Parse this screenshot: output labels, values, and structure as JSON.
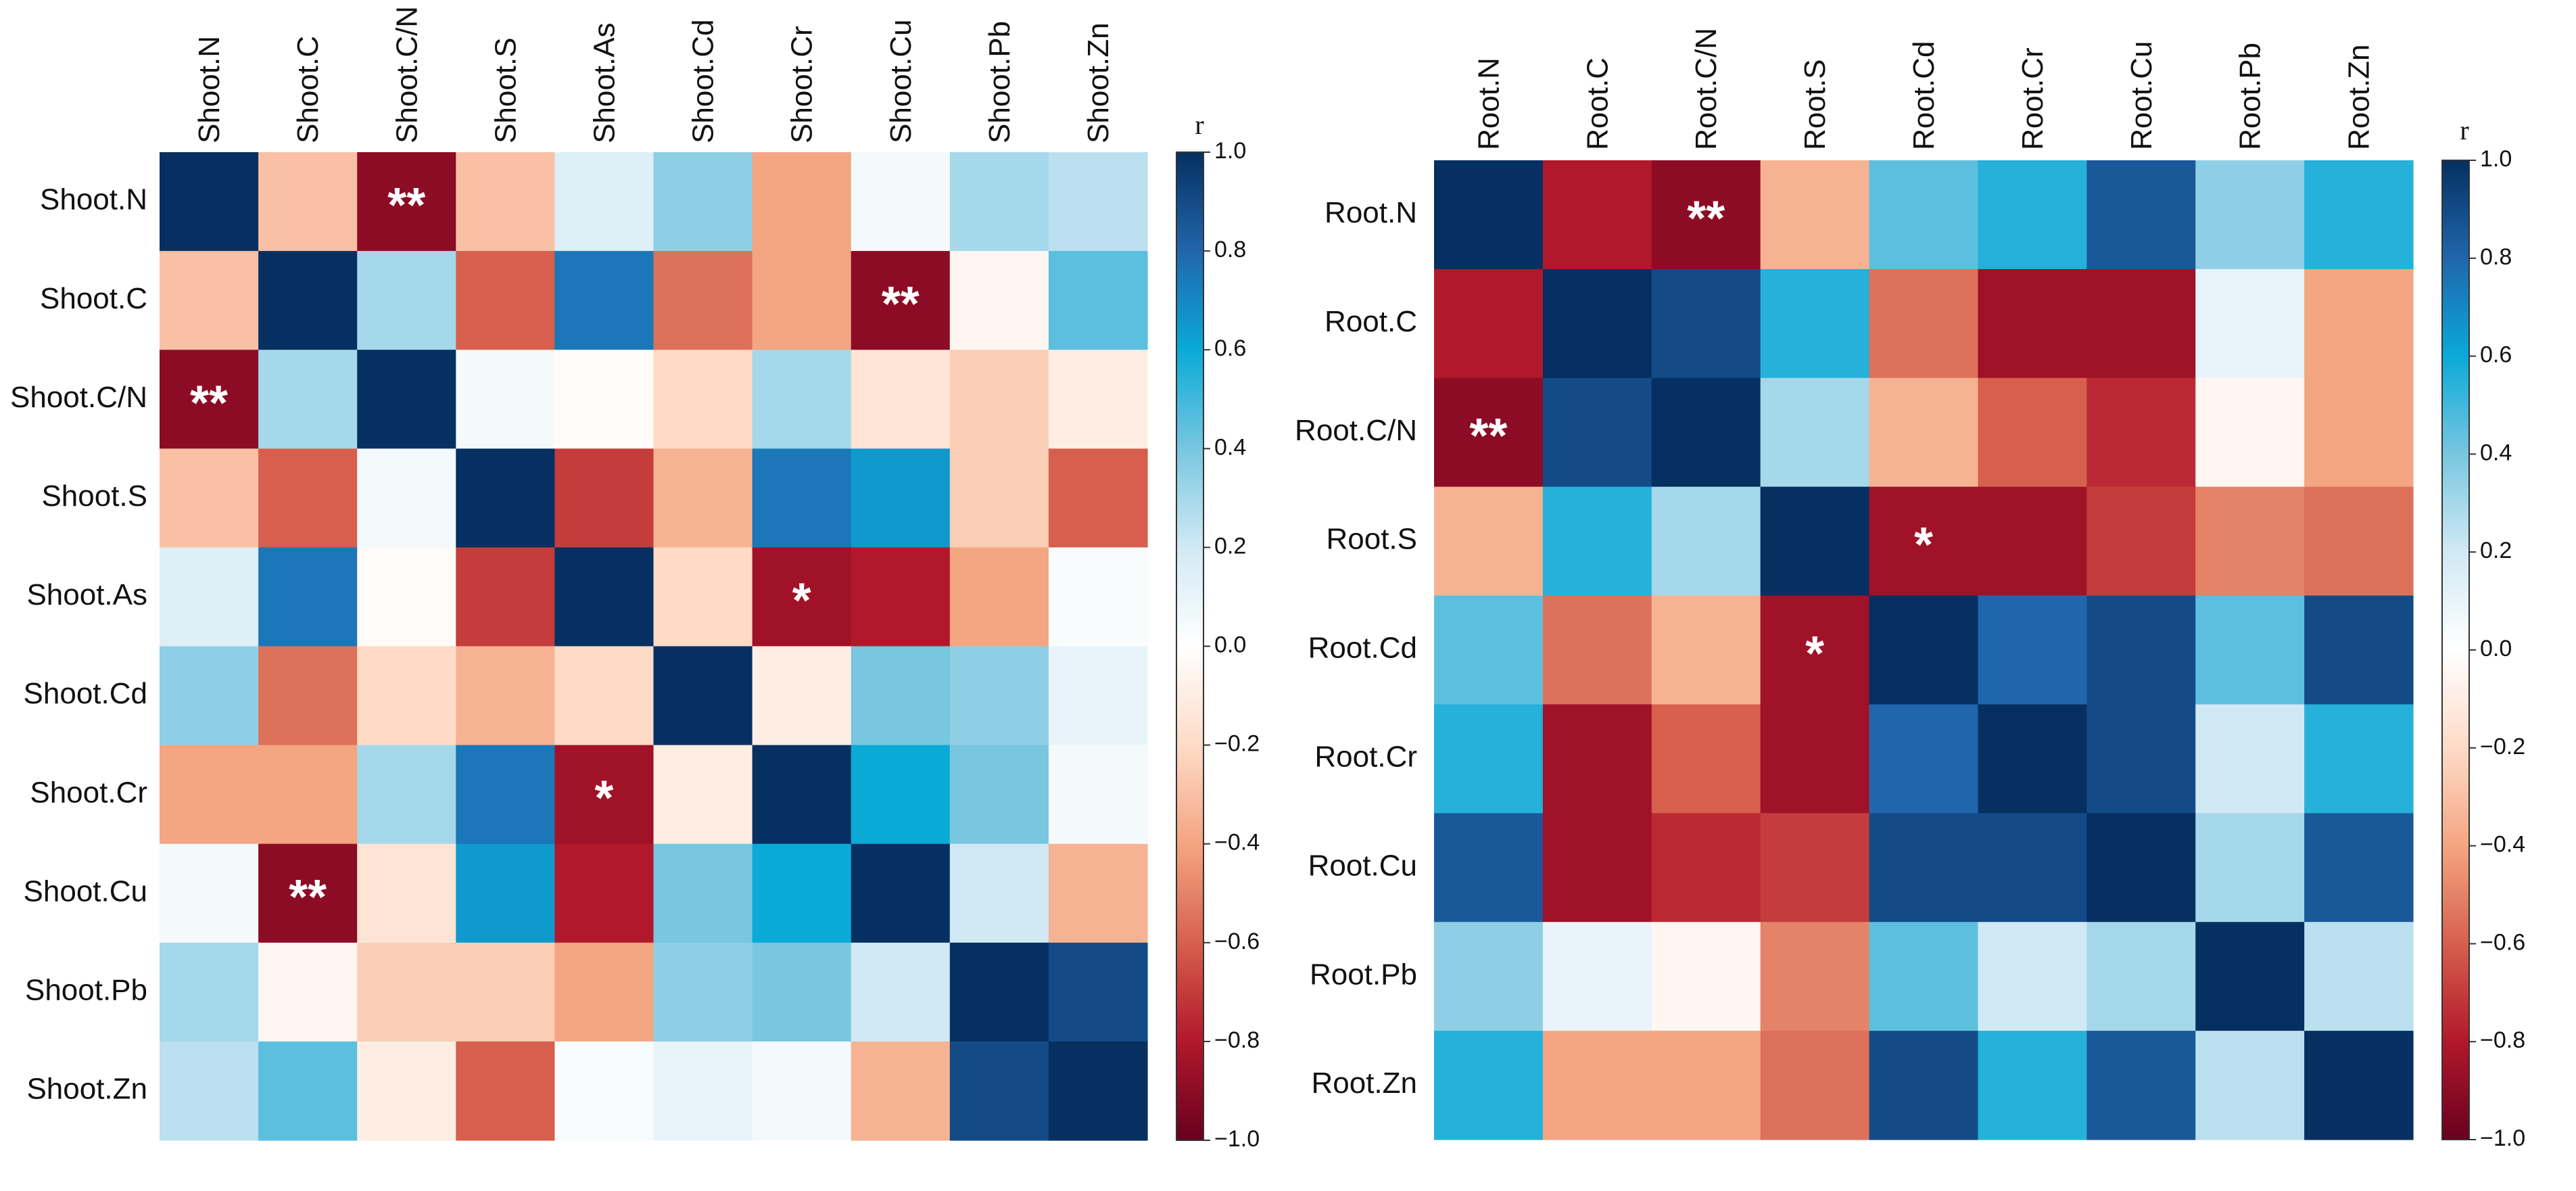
{
  "chart_data": [
    {
      "type": "heatmap",
      "title": "",
      "labels": [
        "Shoot.N",
        "Shoot.C",
        "Shoot.C/N",
        "Shoot.S",
        "Shoot.As",
        "Shoot.Cd",
        "Shoot.Cr",
        "Shoot.Cu",
        "Shoot.Pb",
        "Shoot.Zn"
      ],
      "values": [
        [
          1.0,
          -0.3,
          -0.9,
          -0.3,
          0.15,
          0.35,
          -0.4,
          0.05,
          0.3,
          0.25
        ],
        [
          -0.3,
          1.0,
          0.3,
          -0.6,
          0.75,
          -0.55,
          -0.4,
          -0.9,
          -0.05,
          0.45
        ],
        [
          -0.9,
          0.3,
          1.0,
          0.05,
          -0.02,
          -0.2,
          0.3,
          -0.15,
          -0.25,
          -0.1
        ],
        [
          -0.3,
          -0.6,
          0.05,
          1.0,
          -0.7,
          -0.35,
          0.75,
          0.65,
          -0.25,
          -0.6
        ],
        [
          0.15,
          0.75,
          -0.02,
          -0.7,
          1.0,
          -0.2,
          -0.85,
          -0.8,
          -0.4,
          0.03
        ],
        [
          0.35,
          -0.55,
          -0.2,
          -0.35,
          -0.2,
          1.0,
          -0.1,
          0.4,
          0.35,
          0.1
        ],
        [
          -0.4,
          -0.4,
          0.3,
          0.75,
          -0.85,
          -0.1,
          1.0,
          0.6,
          0.4,
          0.05
        ],
        [
          0.05,
          -0.9,
          -0.15,
          0.65,
          -0.8,
          0.4,
          0.6,
          1.0,
          0.2,
          -0.35
        ],
        [
          0.3,
          -0.05,
          -0.25,
          -0.25,
          -0.4,
          0.35,
          0.4,
          0.2,
          1.0,
          0.9
        ],
        [
          0.25,
          0.45,
          -0.1,
          -0.6,
          0.03,
          0.1,
          0.05,
          -0.35,
          0.9,
          1.0
        ]
      ],
      "annotations": [
        {
          "row": 0,
          "col": 2,
          "text": "**"
        },
        {
          "row": 1,
          "col": 7,
          "text": "**"
        },
        {
          "row": 2,
          "col": 0,
          "text": "**"
        },
        {
          "row": 4,
          "col": 6,
          "text": "*"
        },
        {
          "row": 6,
          "col": 4,
          "text": "*"
        },
        {
          "row": 7,
          "col": 1,
          "text": "**"
        }
      ],
      "colorbar": {
        "label": "r",
        "range": [
          -1.0,
          1.0
        ],
        "ticks": [
          "1.0",
          "0.8",
          "0.6",
          "0.4",
          "0.2",
          "0.0",
          "−0.2",
          "−0.4",
          "−0.6",
          "−0.8",
          "−1.0"
        ]
      }
    },
    {
      "type": "heatmap",
      "title": "",
      "labels": [
        "Root.N",
        "Root.C",
        "Root.C/N",
        "Root.S",
        "Root.Cd",
        "Root.Cr",
        "Root.Cu",
        "Root.Pb",
        "Root.Zn"
      ],
      "values": [
        [
          1.0,
          -0.8,
          -0.9,
          -0.35,
          0.45,
          0.55,
          0.85,
          0.35,
          0.55
        ],
        [
          -0.8,
          1.0,
          0.9,
          0.55,
          -0.55,
          -0.85,
          -0.85,
          0.1,
          -0.4
        ],
        [
          -0.9,
          0.9,
          1.0,
          0.3,
          -0.35,
          -0.6,
          -0.75,
          -0.05,
          -0.4
        ],
        [
          -0.35,
          0.55,
          0.3,
          1.0,
          -0.85,
          -0.85,
          -0.7,
          -0.5,
          -0.55
        ],
        [
          0.45,
          -0.55,
          -0.35,
          -0.85,
          1.0,
          0.8,
          0.9,
          0.45,
          0.9
        ],
        [
          0.55,
          -0.85,
          -0.6,
          -0.85,
          0.8,
          1.0,
          0.9,
          0.2,
          0.55
        ],
        [
          0.85,
          -0.85,
          -0.75,
          -0.7,
          0.9,
          0.9,
          1.0,
          0.3,
          0.85
        ],
        [
          0.35,
          0.1,
          -0.05,
          -0.5,
          0.45,
          0.2,
          0.3,
          1.0,
          0.25
        ],
        [
          0.55,
          -0.4,
          -0.4,
          -0.55,
          0.9,
          0.55,
          0.85,
          0.25,
          1.0
        ]
      ],
      "annotations": [
        {
          "row": 0,
          "col": 2,
          "text": "**"
        },
        {
          "row": 2,
          "col": 0,
          "text": "**"
        },
        {
          "row": 3,
          "col": 4,
          "text": "*"
        },
        {
          "row": 4,
          "col": 3,
          "text": "*"
        }
      ],
      "colorbar": {
        "label": "r",
        "range": [
          -1.0,
          1.0
        ],
        "ticks": [
          "1.0",
          "0.8",
          "0.6",
          "0.4",
          "0.2",
          "0.0",
          "−0.2",
          "−0.4",
          "−0.6",
          "−0.8",
          "−1.0"
        ]
      }
    }
  ]
}
